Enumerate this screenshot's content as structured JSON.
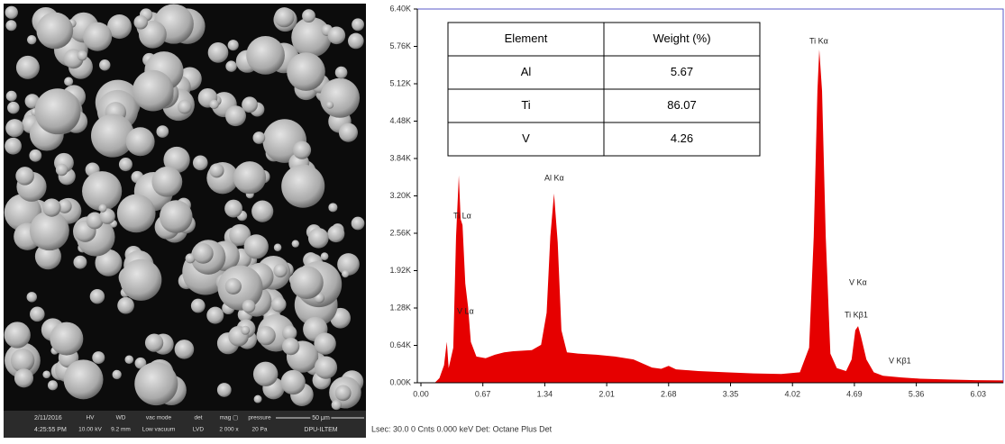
{
  "sem": {
    "date": "2/11/2016",
    "time": "4:25:55 PM",
    "fields": [
      {
        "label": "HV",
        "value": "10.00 kV"
      },
      {
        "label": "WD",
        "value": "9.2 mm"
      },
      {
        "label": "vac mode",
        "value": "Low vacuum"
      },
      {
        "label": "det",
        "value": "LVD"
      },
      {
        "label": "mag ▢",
        "value": "2 000 x"
      },
      {
        "label": "pressure",
        "value": "20 Pa"
      }
    ],
    "scale": "50 μm",
    "lab": "DPU-ILTEM"
  },
  "chart_data": {
    "type": "area",
    "color": "#e60000",
    "x": [
      0.15,
      0.2,
      0.25,
      0.28,
      0.3,
      0.35,
      0.38,
      0.41,
      0.43,
      0.45,
      0.48,
      0.51,
      0.54,
      0.6,
      0.7,
      0.8,
      0.9,
      1.0,
      1.1,
      1.2,
      1.3,
      1.36,
      1.4,
      1.44,
      1.48,
      1.52,
      1.58,
      1.7,
      1.9,
      2.1,
      2.3,
      2.5,
      2.6,
      2.68,
      2.76,
      3.0,
      3.3,
      3.6,
      3.9,
      4.1,
      4.2,
      4.25,
      4.29,
      4.31,
      4.34,
      4.38,
      4.43,
      4.5,
      4.6,
      4.66,
      4.7,
      4.73,
      4.76,
      4.82,
      4.9,
      5.0,
      5.2,
      5.4,
      5.7,
      6.0,
      6.3
    ],
    "values": [
      0,
      80,
      300,
      700,
      250,
      600,
      2500,
      3550,
      2800,
      2700,
      1700,
      1300,
      700,
      450,
      420,
      480,
      520,
      540,
      550,
      560,
      650,
      1200,
      2500,
      3240,
      2400,
      900,
      520,
      500,
      480,
      450,
      400,
      260,
      240,
      290,
      230,
      200,
      180,
      160,
      150,
      180,
      600,
      2500,
      5000,
      5706,
      5000,
      2500,
      500,
      250,
      200,
      400,
      900,
      970,
      800,
      400,
      180,
      120,
      90,
      70,
      55,
      45,
      40
    ],
    "xlim": [
      0,
      6.3
    ],
    "ylim": [
      0,
      6400
    ],
    "xticks": [
      {
        "value": 0,
        "label": "0.00"
      },
      {
        "value": 0.67,
        "label": "0.67"
      },
      {
        "value": 1.34,
        "label": "1.34"
      },
      {
        "value": 2.01,
        "label": "2.01"
      },
      {
        "value": 2.68,
        "label": "2.68"
      },
      {
        "value": 3.35,
        "label": "3.35"
      },
      {
        "value": 4.02,
        "label": "4.02"
      },
      {
        "value": 4.69,
        "label": "4.69"
      },
      {
        "value": 5.36,
        "label": "5.36"
      },
      {
        "value": 6.03,
        "label": "6.03"
      }
    ],
    "yticks": [
      {
        "value": 0,
        "label": "0.00K"
      },
      {
        "value": 640,
        "label": "0.64K"
      },
      {
        "value": 1280,
        "label": "1.28K"
      },
      {
        "value": 1920,
        "label": "1.92K"
      },
      {
        "value": 2560,
        "label": "2.56K"
      },
      {
        "value": 3200,
        "label": "3.20K"
      },
      {
        "value": 3840,
        "label": "3.84K"
      },
      {
        "value": 4480,
        "label": "4.48K"
      },
      {
        "value": 5120,
        "label": "5.12K"
      },
      {
        "value": 5760,
        "label": "5.76K"
      },
      {
        "value": 6400,
        "label": "6.40K"
      }
    ],
    "annotations": [
      "Ti Lα",
      "V Lα",
      "Al Kα",
      "Ti Kα",
      "V  Kα",
      "Ti Kβ1",
      "V  Kβ1"
    ]
  },
  "table": {
    "header": [
      "Element",
      "Weight (%)"
    ],
    "rows": [
      [
        "Al",
        "5.67"
      ],
      [
        "Ti",
        "86.07"
      ],
      [
        "V",
        "4.26"
      ]
    ]
  },
  "footer": "Lsec: 30.0 0 Cnts  0.000 keV Det: Octane Plus Det"
}
